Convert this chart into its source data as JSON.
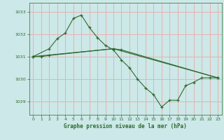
{
  "title": "Graphe pression niveau de la mer (hPa)",
  "background_color": "#cce8e8",
  "grid_color": "#e8b0b0",
  "line_color": "#2d6a2d",
  "xlim": [
    -0.5,
    23.5
  ],
  "ylim": [
    1028.4,
    1033.4
  ],
  "yticks": [
    1029,
    1030,
    1031,
    1032,
    1033
  ],
  "xticks": [
    0,
    1,
    2,
    3,
    4,
    5,
    6,
    7,
    8,
    9,
    10,
    11,
    12,
    13,
    14,
    15,
    16,
    17,
    18,
    19,
    20,
    21,
    22,
    23
  ],
  "series1": {
    "x": [
      0,
      2,
      3,
      4,
      5,
      6,
      7,
      8,
      9,
      10,
      11,
      12,
      13,
      14,
      15,
      16,
      17,
      18,
      19,
      20,
      21,
      22,
      23
    ],
    "y": [
      1031.0,
      1031.35,
      1031.8,
      1032.05,
      1032.7,
      1032.85,
      1032.3,
      1031.85,
      1031.5,
      1031.3,
      1030.85,
      1030.5,
      1030.0,
      1029.6,
      1029.3,
      1028.75,
      1029.05,
      1029.05,
      1029.7,
      1029.85,
      1030.05,
      1030.05,
      1030.05
    ]
  },
  "series2": {
    "x": [
      0,
      1,
      2,
      10,
      11,
      23
    ],
    "y": [
      1031.0,
      1031.0,
      1031.05,
      1031.35,
      1031.3,
      1030.05
    ]
  },
  "series3": {
    "x": [
      0,
      10,
      23
    ],
    "y": [
      1031.0,
      1031.35,
      1030.05
    ]
  }
}
